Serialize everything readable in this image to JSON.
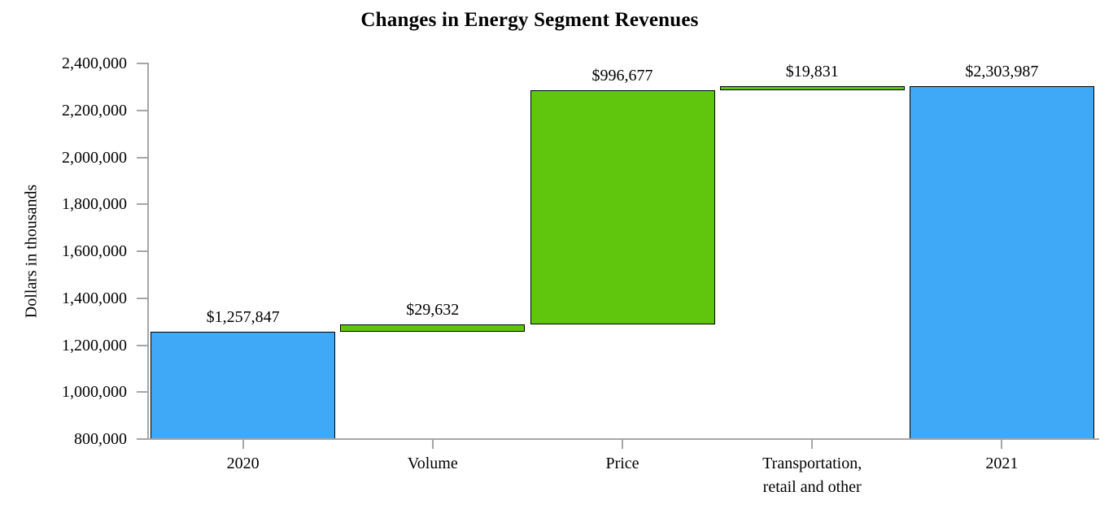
{
  "figure": {
    "title": "Changes in Energy Segment Revenues",
    "background": "#ffffff"
  },
  "chart_data": {
    "type": "bar",
    "subtype": "waterfall",
    "title": "Changes in Energy Segment Revenues",
    "xlabel": "",
    "ylabel": "Dollars in thousands",
    "ylim": [
      800000,
      2400000
    ],
    "ytick_step": 200000,
    "ytick_values": [
      800000,
      1000000,
      1200000,
      1400000,
      1600000,
      1800000,
      2000000,
      2200000,
      2400000
    ],
    "ytick_labels": [
      "800,000",
      "1,000,000",
      "1,200,000",
      "1,400,000",
      "1,600,000",
      "1,800,000",
      "2,000,000",
      "2,200,000",
      "2,400,000"
    ],
    "grid": false,
    "legend": false,
    "categories": [
      "2020",
      "Volume",
      "Price",
      "Transportation,\nretail and other",
      "2021"
    ],
    "bars": [
      {
        "category": "2020",
        "kind": "total",
        "start": 800000,
        "end": 1257847,
        "value": 1257847,
        "display": "$1,257,847"
      },
      {
        "category": "Volume",
        "kind": "increase",
        "start": 1257847,
        "end": 1287479,
        "value": 29632,
        "display": "$29,632"
      },
      {
        "category": "Price",
        "kind": "increase",
        "start": 1287479,
        "end": 2284156,
        "value": 996677,
        "display": "$996,677"
      },
      {
        "category": "Transportation,\nretail and other",
        "kind": "increase",
        "start": 2284156,
        "end": 2303987,
        "value": 19831,
        "display": "$19,831"
      },
      {
        "category": "2021",
        "kind": "total",
        "start": 800000,
        "end": 2303987,
        "value": 2303987,
        "display": "$2,303,987"
      }
    ],
    "colors": {
      "total": "#3fa9f7",
      "increase": "#5fc60d",
      "bar_border": "#000000",
      "axis": "#a6a6a6",
      "text": "#000000"
    }
  }
}
